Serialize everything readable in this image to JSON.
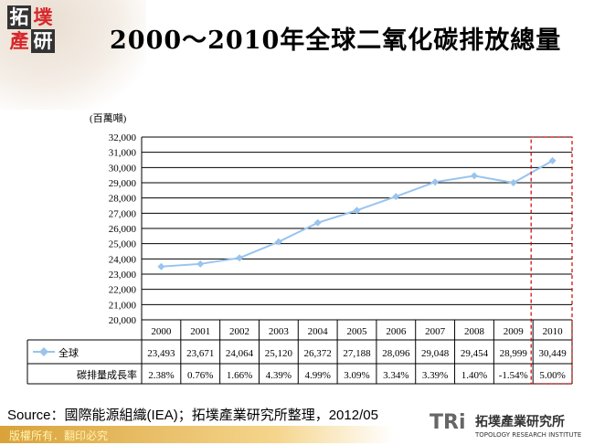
{
  "logo": {
    "chars": [
      "拓",
      "墣",
      "產",
      "研"
    ]
  },
  "title": "2000～2010年全球二氧化碳排放總量",
  "source": "Source：國際能源組織(IEA)；拓墣產業研究所整理，2012/05",
  "footer": "版權所有．翻印必究",
  "brand": {
    "mark": "TRi",
    "name": "拓墣產業研究所",
    "sub": "TOPOLOGY RESEARCH INSTITUTE"
  },
  "chart_data": {
    "type": "line",
    "title": "2000～2010年全球二氧化碳排放總量",
    "ylabel": "(百萬噸)",
    "ylim": [
      20000,
      32000
    ],
    "yticks": [
      "20,000",
      "21,000",
      "22,000",
      "23,000",
      "24,000",
      "25,000",
      "26,000",
      "27,000",
      "28,000",
      "29,000",
      "30,000",
      "31,000",
      "32,000"
    ],
    "grid": true,
    "categories": [
      "2000",
      "2001",
      "2002",
      "2003",
      "2004",
      "2005",
      "2006",
      "2007",
      "2008",
      "2009",
      "2010"
    ],
    "series": [
      {
        "name": "全球",
        "color": "#99c4ee",
        "values": [
          23493,
          23671,
          24064,
          25120,
          26372,
          27188,
          28096,
          29048,
          29454,
          28999,
          30449
        ],
        "labels": [
          "23,493",
          "23,671",
          "24,064",
          "25,120",
          "26,372",
          "27,188",
          "28,096",
          "29,048",
          "29,454",
          "28,999",
          "30,449"
        ]
      }
    ],
    "growth": {
      "name": "碳排量成長率",
      "values": [
        "2.38%",
        "0.76%",
        "1.66%",
        "4.39%",
        "4.99%",
        "3.09%",
        "3.34%",
        "3.39%",
        "1.40%",
        "-1.54%",
        "5.00%"
      ]
    },
    "highlight": {
      "category": "2010",
      "color": "#cc0000"
    }
  }
}
